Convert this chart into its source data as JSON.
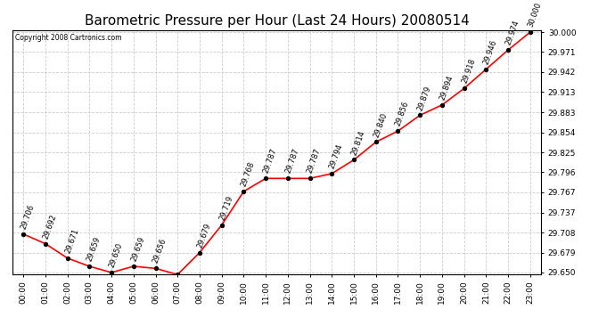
{
  "title": "Barometric Pressure per Hour (Last 24 Hours) 20080514",
  "copyright": "Copyright 2008 Cartronics.com",
  "hours": [
    "00:00",
    "01:00",
    "02:00",
    "03:00",
    "04:00",
    "05:00",
    "06:00",
    "07:00",
    "08:00",
    "09:00",
    "10:00",
    "11:00",
    "12:00",
    "13:00",
    "14:00",
    "15:00",
    "16:00",
    "17:00",
    "18:00",
    "19:00",
    "20:00",
    "21:00",
    "22:00",
    "23:00"
  ],
  "values": [
    29.706,
    29.692,
    29.671,
    29.659,
    29.65,
    29.659,
    29.656,
    29.647,
    29.679,
    29.719,
    29.768,
    29.787,
    29.787,
    29.787,
    29.794,
    29.814,
    29.84,
    29.856,
    29.879,
    29.894,
    29.918,
    29.946,
    29.974,
    30.0
  ],
  "ylim": [
    29.648,
    30.003
  ],
  "yticks": [
    29.65,
    29.679,
    29.708,
    29.737,
    29.767,
    29.796,
    29.825,
    29.854,
    29.883,
    29.913,
    29.942,
    29.971,
    30.0
  ],
  "line_color": "red",
  "marker_color": "black",
  "bg_color": "white",
  "grid_color": "#cccccc",
  "title_fontsize": 11,
  "label_fontsize": 6.5,
  "annot_fontsize": 6,
  "annot_rotation": 70
}
